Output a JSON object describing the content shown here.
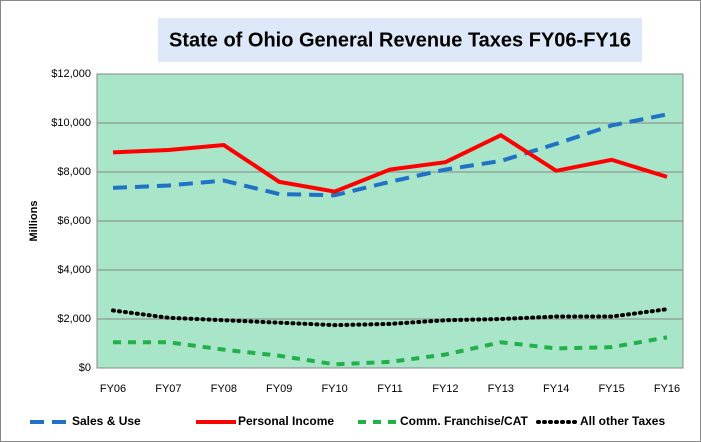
{
  "chart_data": {
    "type": "line",
    "title": "State of Ohio General Revenue Taxes FY06-FY16",
    "y_label": "Millions",
    "categories": [
      "FY06",
      "FY07",
      "FY08",
      "FY09",
      "FY10",
      "FY11",
      "FY12",
      "FY13",
      "FY14",
      "FY15",
      "FY16"
    ],
    "series": [
      {
        "name": "Sales & Use",
        "color": "#1f72c6",
        "values": [
          7350,
          7450,
          7650,
          7100,
          7050,
          7600,
          8100,
          8450,
          9150,
          9900,
          10350
        ]
      },
      {
        "name": "Personal Income",
        "color": "#ff0000",
        "values": [
          8800,
          8900,
          9100,
          7600,
          7200,
          8100,
          8400,
          9500,
          8050,
          8500,
          7800
        ]
      },
      {
        "name": "Comm. Franchise/CAT",
        "color": "#22b04a",
        "values": [
          1050,
          1050,
          750,
          500,
          150,
          250,
          550,
          1050,
          800,
          850,
          1250
        ]
      },
      {
        "name": "All other Taxes",
        "color": "#000000",
        "values": [
          2350,
          2050,
          1950,
          1850,
          1750,
          1800,
          1950,
          2000,
          2100,
          2100,
          2400
        ]
      }
    ],
    "ylim": [
      0,
      12000
    ],
    "yticks": [
      {
        "value": 0,
        "label": "$0"
      },
      {
        "value": 2000,
        "label": "$2,000"
      },
      {
        "value": 4000,
        "label": "$4,000"
      },
      {
        "value": 6000,
        "label": "$6,000"
      },
      {
        "value": 8000,
        "label": "$8,000"
      },
      {
        "value": 10000,
        "label": "$10,000"
      },
      {
        "value": 12000,
        "label": "$12,000"
      }
    ],
    "grid": true
  }
}
